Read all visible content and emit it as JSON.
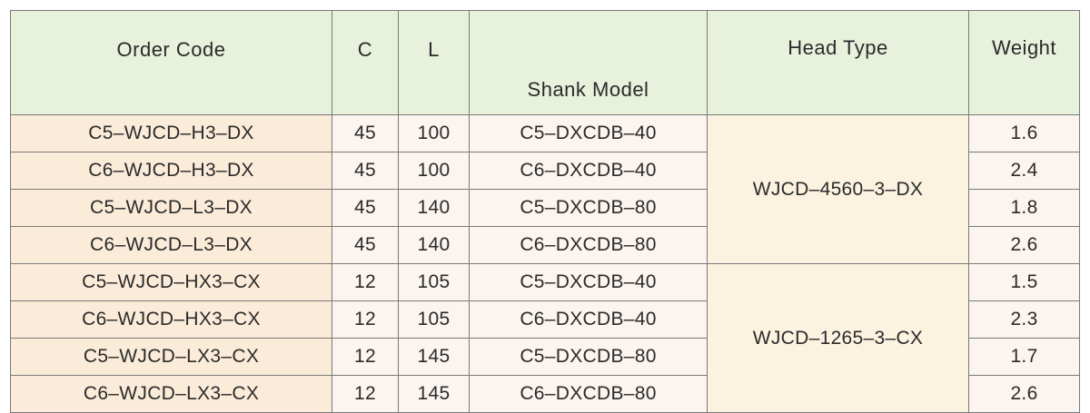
{
  "table": {
    "headers": {
      "order_code": "Order Code",
      "c": "C",
      "l": "L",
      "shank_model": "Shank Model",
      "head_type": "Head Type",
      "weight": "Weight"
    },
    "rows": [
      {
        "order_code": "C5–WJCD–H3–DX",
        "c": "45",
        "l": "100",
        "shank_model": "C5–DXCDB–40",
        "weight": "1.6"
      },
      {
        "order_code": "C6–WJCD–H3–DX",
        "c": "45",
        "l": "100",
        "shank_model": "C6–DXCDB–40",
        "weight": "2.4"
      },
      {
        "order_code": "C5–WJCD–L3–DX",
        "c": "45",
        "l": "140",
        "shank_model": "C5–DXCDB–80",
        "weight": "1.8"
      },
      {
        "order_code": "C6–WJCD–L3–DX",
        "c": "45",
        "l": "140",
        "shank_model": "C6–DXCDB–80",
        "weight": "2.6"
      },
      {
        "order_code": "C5–WJCD–HX3–CX",
        "c": "12",
        "l": "105",
        "shank_model": "C5–DXCDB–40",
        "weight": "1.5"
      },
      {
        "order_code": "C6–WJCD–HX3–CX",
        "c": "12",
        "l": "105",
        "shank_model": "C6–DXCDB–40",
        "weight": "2.3"
      },
      {
        "order_code": "C5–WJCD–LX3–CX",
        "c": "12",
        "l": "145",
        "shank_model": "C5–DXCDB–80",
        "weight": "1.7"
      },
      {
        "order_code": "C6–WJCD–LX3–CX",
        "c": "12",
        "l": "145",
        "shank_model": "C6–DXCDB–80",
        "weight": "2.6"
      }
    ],
    "head_types": [
      "WJCD–4560–3–DX",
      "WJCD–1265–3–CX"
    ]
  },
  "colors": {
    "header_bg": "#e8f1dc",
    "order_code_bg": "#fbecd9",
    "cell_bg": "#fbf4ef",
    "head_type_bg": "#fbf2e0",
    "border": "#7a7a7a"
  }
}
